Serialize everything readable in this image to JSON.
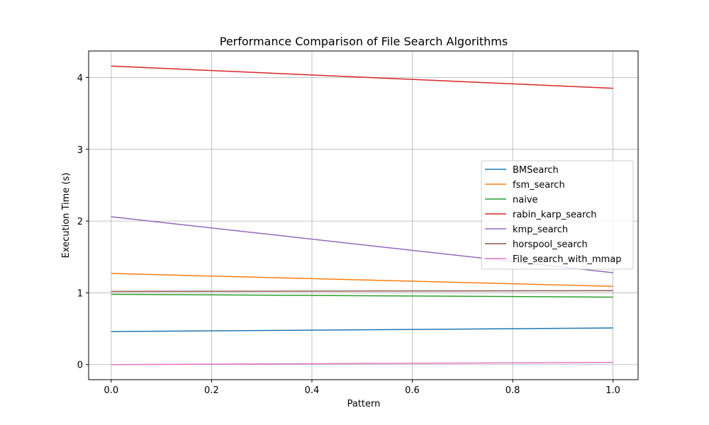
{
  "chart_data": {
    "type": "line",
    "title": "Performance Comparison of File Search Algorithms",
    "xlabel": "Pattern",
    "ylabel": "Execution Time (s)",
    "xlim": [
      -0.045,
      1.05
    ],
    "ylim": [
      -0.21,
      4.37
    ],
    "x_ticks": [
      0.0,
      0.2,
      0.4,
      0.6,
      0.8,
      1.0
    ],
    "x_tick_labels": [
      "0.0",
      "0.2",
      "0.4",
      "0.6",
      "0.8",
      "1.0"
    ],
    "y_ticks": [
      0,
      1,
      2,
      3,
      4
    ],
    "y_tick_labels": [
      "0",
      "1",
      "2",
      "3",
      "4"
    ],
    "grid": true,
    "legend_position": "center-right",
    "series": [
      {
        "name": "BMSearch",
        "color": "#1f77b4",
        "x": [
          0,
          1
        ],
        "y": [
          0.46,
          0.51
        ]
      },
      {
        "name": "fsm_search",
        "color": "#ff7f0e",
        "x": [
          0,
          1
        ],
        "y": [
          1.27,
          1.09
        ]
      },
      {
        "name": "naive",
        "color": "#2ca02c",
        "x": [
          0,
          1
        ],
        "y": [
          0.98,
          0.94
        ]
      },
      {
        "name": "rabin_karp_search",
        "color": "#d62728",
        "x": [
          0,
          1
        ],
        "y": [
          4.16,
          3.85
        ]
      },
      {
        "name": "kmp_search",
        "color": "#9467bd",
        "x": [
          0,
          1
        ],
        "y": [
          2.06,
          1.28
        ]
      },
      {
        "name": "horspool_search",
        "color": "#8c564b",
        "x": [
          0,
          1
        ],
        "y": [
          1.02,
          1.03
        ]
      },
      {
        "name": "File_search_with_mmap",
        "color": "#e377c2",
        "x": [
          0,
          1
        ],
        "y": [
          0.0,
          0.03
        ]
      }
    ]
  }
}
